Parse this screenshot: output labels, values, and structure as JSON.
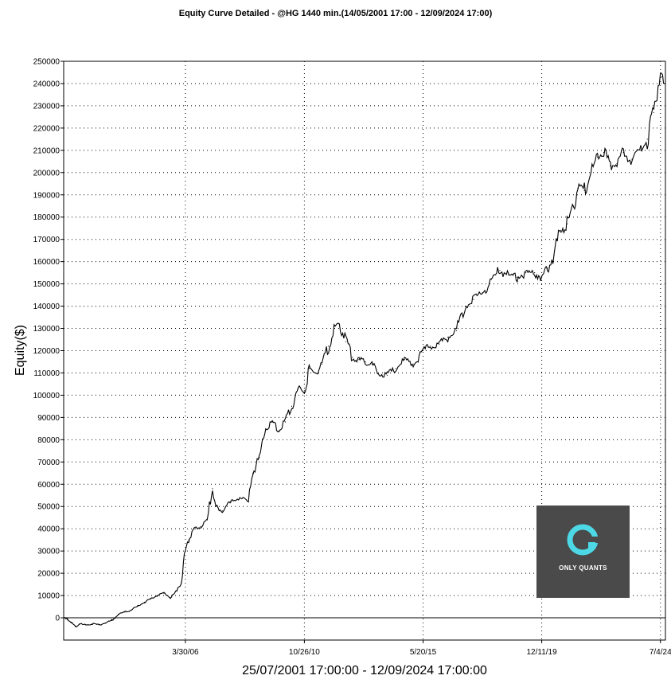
{
  "chart_data": {
    "type": "line",
    "title": "Equity Curve Detailed - @HG 1440 min.(14/05/2001 17:00 - 12/09/2024 17:00)",
    "xlabel": "25/07/2001 17:00:00 - 12/09/2024 17:00:00",
    "ylabel": "Equity($)",
    "xlim": [
      "2001-07-25",
      "2024-09-12"
    ],
    "ylim": [
      -10000,
      250000
    ],
    "x_ticks": [
      {
        "date": "2006-03-30",
        "label": "3/30/06"
      },
      {
        "date": "2010-10-26",
        "label": "10/26/10"
      },
      {
        "date": "2015-05-20",
        "label": "5/20/15"
      },
      {
        "date": "2019-12-11",
        "label": "12/11/19"
      },
      {
        "date": "2024-07-04",
        "label": "7/4/24"
      }
    ],
    "y_ticks": [
      0,
      10000,
      20000,
      30000,
      40000,
      50000,
      60000,
      70000,
      80000,
      90000,
      100000,
      110000,
      120000,
      130000,
      140000,
      150000,
      160000,
      170000,
      180000,
      190000,
      200000,
      210000,
      220000,
      230000,
      240000,
      250000
    ],
    "grid": true,
    "series": [
      {
        "color": "#000000",
        "points": [
          [
            "2001-07-25",
            0
          ],
          [
            "2001-09-15",
            -800
          ],
          [
            "2001-11-10",
            -2000
          ],
          [
            "2002-01-05",
            -4000
          ],
          [
            "2002-03-01",
            -2800
          ],
          [
            "2002-06-01",
            -3200
          ],
          [
            "2002-09-01",
            -2700
          ],
          [
            "2002-12-01",
            -3100
          ],
          [
            "2003-03-01",
            -2400
          ],
          [
            "2003-06-01",
            -1200
          ],
          [
            "2003-09-01",
            1500
          ],
          [
            "2003-12-01",
            2500
          ],
          [
            "2004-03-01",
            3500
          ],
          [
            "2004-06-01",
            5200
          ],
          [
            "2004-09-01",
            7000
          ],
          [
            "2004-12-01",
            8500
          ],
          [
            "2005-03-01",
            10000
          ],
          [
            "2005-06-01",
            11000
          ],
          [
            "2005-09-01",
            9000
          ],
          [
            "2005-12-01",
            12000
          ],
          [
            "2006-02-01",
            16000
          ],
          [
            "2006-03-30",
            30000
          ],
          [
            "2006-05-15",
            35000
          ],
          [
            "2006-08-01",
            40000
          ],
          [
            "2006-11-01",
            41000
          ],
          [
            "2007-02-01",
            44000
          ],
          [
            "2007-04-15",
            58000
          ],
          [
            "2007-06-01",
            50000
          ],
          [
            "2007-09-01",
            48000
          ],
          [
            "2008-01-01",
            52000
          ],
          [
            "2008-05-01",
            54000
          ],
          [
            "2008-09-01",
            52000
          ],
          [
            "2008-11-01",
            65000
          ],
          [
            "2009-02-01",
            72000
          ],
          [
            "2009-05-01",
            85000
          ],
          [
            "2009-08-01",
            88000
          ],
          [
            "2009-11-01",
            84000
          ],
          [
            "2010-02-01",
            88000
          ],
          [
            "2010-05-01",
            95000
          ],
          [
            "2010-08-01",
            103000
          ],
          [
            "2010-10-26",
            102000
          ],
          [
            "2011-01-01",
            112000
          ],
          [
            "2011-04-01",
            110000
          ],
          [
            "2011-07-01",
            114000
          ],
          [
            "2011-10-01",
            122000
          ],
          [
            "2012-01-01",
            131000
          ],
          [
            "2012-03-01",
            132000
          ],
          [
            "2012-06-01",
            124000
          ],
          [
            "2012-09-01",
            117000
          ],
          [
            "2012-12-01",
            116000
          ],
          [
            "2013-03-01",
            115000
          ],
          [
            "2013-06-01",
            114000
          ],
          [
            "2013-09-01",
            110000
          ],
          [
            "2014-01-01",
            109000
          ],
          [
            "2014-05-01",
            112000
          ],
          [
            "2014-09-01",
            116000
          ],
          [
            "2015-01-01",
            114000
          ],
          [
            "2015-05-20",
            120000
          ],
          [
            "2015-09-01",
            122000
          ],
          [
            "2016-01-01",
            123000
          ],
          [
            "2016-05-01",
            126000
          ],
          [
            "2016-09-01",
            129000
          ],
          [
            "2017-01-01",
            140000
          ],
          [
            "2017-05-01",
            143000
          ],
          [
            "2017-09-01",
            146000
          ],
          [
            "2018-01-01",
            152000
          ],
          [
            "2018-05-01",
            156000
          ],
          [
            "2018-09-01",
            154000
          ],
          [
            "2019-01-01",
            153000
          ],
          [
            "2019-05-01",
            155000
          ],
          [
            "2019-09-01",
            155000
          ],
          [
            "2019-12-11",
            153000
          ],
          [
            "2020-03-01",
            157000
          ],
          [
            "2020-06-01",
            163000
          ],
          [
            "2020-09-01",
            174000
          ],
          [
            "2020-12-01",
            177000
          ],
          [
            "2021-03-01",
            185000
          ],
          [
            "2021-05-01",
            193000
          ],
          [
            "2021-08-01",
            192000
          ],
          [
            "2021-11-01",
            200000
          ],
          [
            "2022-02-01",
            207000
          ],
          [
            "2022-05-01",
            209000
          ],
          [
            "2022-08-01",
            203000
          ],
          [
            "2022-11-01",
            204000
          ],
          [
            "2023-02-01",
            209000
          ],
          [
            "2023-06-01",
            206000
          ],
          [
            "2023-10-01",
            210000
          ],
          [
            "2024-01-01",
            215000
          ],
          [
            "2024-04-01",
            227000
          ],
          [
            "2024-06-01",
            239000
          ],
          [
            "2024-07-20",
            243000
          ],
          [
            "2024-09-12",
            240000
          ]
        ]
      }
    ],
    "watermark": {
      "text": "ONLY QUANTS",
      "background": "#4a4a4a",
      "logo_color": "#4dd8e6"
    }
  }
}
